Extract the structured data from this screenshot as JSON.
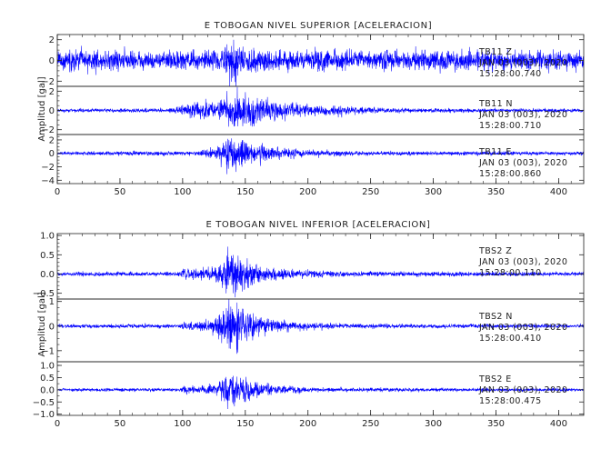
{
  "chart_data": [
    {
      "type": "line",
      "title": "E TOBOGAN NIVEL SUPERIOR [ACELERACION]",
      "ylabel": "Amplitud [gal]",
      "xlabel": "",
      "xlim": [
        0,
        420
      ],
      "xticks": [
        0,
        50,
        100,
        150,
        200,
        250,
        300,
        350,
        400
      ],
      "grid": false,
      "line_color": "#0000ff",
      "traces": [
        {
          "station": "TB11",
          "component": "Z",
          "date": "JAN 03 (003), 2020",
          "time": "15:28:00.740",
          "ylim": [
            -2.5,
            2.5
          ],
          "yticks": [
            -2,
            0,
            2
          ],
          "noise": 0.65,
          "envelope": [
            {
              "t": 0,
              "a": 1.0
            },
            {
              "t": 130,
              "a": 1.0
            },
            {
              "t": 136,
              "a": 1.8
            },
            {
              "t": 140,
              "a": 2.7
            },
            {
              "t": 146,
              "a": 1.5
            },
            {
              "t": 160,
              "a": 1.15
            },
            {
              "t": 200,
              "a": 1.05
            },
            {
              "t": 420,
              "a": 1.0
            }
          ]
        },
        {
          "station": "TB11",
          "component": "N",
          "date": "JAN 03 (003), 2020",
          "time": "15:28:00.710",
          "ylim": [
            -2.5,
            2.5
          ],
          "yticks": [
            -2,
            0,
            2
          ],
          "noise": 0.12,
          "envelope": [
            {
              "t": 0,
              "a": 1.0
            },
            {
              "t": 90,
              "a": 1.2
            },
            {
              "t": 100,
              "a": 3.0
            },
            {
              "t": 115,
              "a": 4.5
            },
            {
              "t": 130,
              "a": 6.5
            },
            {
              "t": 140,
              "a": 11.0
            },
            {
              "t": 150,
              "a": 10.0
            },
            {
              "t": 160,
              "a": 8.5
            },
            {
              "t": 180,
              "a": 5.5
            },
            {
              "t": 200,
              "a": 3.5
            },
            {
              "t": 215,
              "a": 2.5
            },
            {
              "t": 225,
              "a": 3.2
            },
            {
              "t": 240,
              "a": 2.0
            },
            {
              "t": 280,
              "a": 1.3
            },
            {
              "t": 420,
              "a": 1.0
            }
          ]
        },
        {
          "station": "TB11",
          "component": "E",
          "date": "JAN 03 (003), 2020",
          "time": "15:28:00.860",
          "ylim": [
            -4.5,
            2.8
          ],
          "yticks": [
            -4,
            -2,
            0,
            2
          ],
          "noise": 0.18,
          "envelope": [
            {
              "t": 0,
              "a": 1.0
            },
            {
              "t": 110,
              "a": 1.3
            },
            {
              "t": 128,
              "a": 3.5
            },
            {
              "t": 136,
              "a": 11.0
            },
            {
              "t": 142,
              "a": 9.0
            },
            {
              "t": 155,
              "a": 6.0
            },
            {
              "t": 175,
              "a": 3.5
            },
            {
              "t": 200,
              "a": 2.0
            },
            {
              "t": 240,
              "a": 1.2
            },
            {
              "t": 420,
              "a": 1.0
            }
          ]
        }
      ]
    },
    {
      "type": "line",
      "title": "E TOBOGAN NIVEL INFERIOR [ACELERACION]",
      "ylabel": "Amplitud [gal]",
      "xlabel": "",
      "xlim": [
        0,
        420
      ],
      "xticks": [
        0,
        50,
        100,
        150,
        200,
        250,
        300,
        350,
        400
      ],
      "grid": false,
      "line_color": "#0000ff",
      "traces": [
        {
          "station": "TBS2",
          "component": "Z",
          "date": "JAN 03 (003), 2020",
          "time": "15:28:00.110",
          "ylim": [
            -0.65,
            1.05
          ],
          "yticks": [
            -0.5,
            0.0,
            0.5,
            1.0
          ],
          "ytick_labels": [
            "−0.5",
            "0.0",
            "0.5",
            "1.0"
          ],
          "noise": 0.035,
          "envelope": [
            {
              "t": 0,
              "a": 1.0
            },
            {
              "t": 98,
              "a": 1.1
            },
            {
              "t": 101,
              "a": 3.0
            },
            {
              "t": 110,
              "a": 2.5
            },
            {
              "t": 125,
              "a": 3.5
            },
            {
              "t": 135,
              "a": 9.0
            },
            {
              "t": 140,
              "a": 12.0
            },
            {
              "t": 148,
              "a": 8.0
            },
            {
              "t": 165,
              "a": 4.0
            },
            {
              "t": 190,
              "a": 2.0
            },
            {
              "t": 230,
              "a": 1.3
            },
            {
              "t": 420,
              "a": 1.0
            }
          ]
        },
        {
          "station": "TBS2",
          "component": "N",
          "date": "JAN 03 (003), 2020",
          "time": "15:28:00.410",
          "ylim": [
            -1.45,
            1.1
          ],
          "yticks": [
            -1,
            0,
            1
          ],
          "noise": 0.05,
          "envelope": [
            {
              "t": 0,
              "a": 1.0
            },
            {
              "t": 98,
              "a": 1.2
            },
            {
              "t": 101,
              "a": 2.5
            },
            {
              "t": 120,
              "a": 3.0
            },
            {
              "t": 133,
              "a": 10.0
            },
            {
              "t": 140,
              "a": 15.0
            },
            {
              "t": 148,
              "a": 9.0
            },
            {
              "t": 165,
              "a": 4.5
            },
            {
              "t": 190,
              "a": 2.2
            },
            {
              "t": 230,
              "a": 1.3
            },
            {
              "t": 420,
              "a": 1.0
            }
          ]
        },
        {
          "station": "TBS2",
          "component": "E",
          "date": "JAN 03 (003), 2020",
          "time": "15:28:00.475",
          "ylim": [
            -1.05,
            1.15
          ],
          "yticks": [
            -1.0,
            -0.5,
            0.0,
            0.5,
            1.0
          ],
          "ytick_labels": [
            "−1.0",
            "−0.5",
            "0.0",
            "0.5",
            "1.0"
          ],
          "noise": 0.04,
          "envelope": [
            {
              "t": 0,
              "a": 1.0
            },
            {
              "t": 98,
              "a": 1.2
            },
            {
              "t": 101,
              "a": 3.0
            },
            {
              "t": 115,
              "a": 2.5
            },
            {
              "t": 128,
              "a": 4.0
            },
            {
              "t": 137,
              "a": 14.0
            },
            {
              "t": 142,
              "a": 12.0
            },
            {
              "t": 155,
              "a": 6.0
            },
            {
              "t": 175,
              "a": 3.0
            },
            {
              "t": 210,
              "a": 1.5
            },
            {
              "t": 420,
              "a": 1.0
            }
          ]
        }
      ]
    }
  ]
}
